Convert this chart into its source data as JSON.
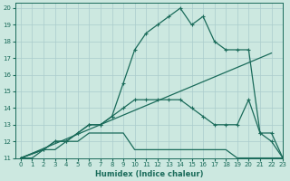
{
  "xlabel": "Humidex (Indice chaleur)",
  "bg_color": "#cce8e0",
  "grid_color": "#aacccc",
  "line_color": "#1a6b5a",
  "xlim": [
    -0.5,
    23
  ],
  "ylim": [
    11,
    20.3
  ],
  "xticks": [
    0,
    1,
    2,
    3,
    4,
    5,
    6,
    7,
    8,
    9,
    10,
    11,
    12,
    13,
    14,
    15,
    16,
    17,
    18,
    19,
    20,
    21,
    22,
    23
  ],
  "yticks": [
    11,
    12,
    13,
    14,
    15,
    16,
    17,
    18,
    19,
    20
  ],
  "line1_x": [
    0,
    1,
    2,
    3,
    4,
    5,
    6,
    7,
    8,
    9,
    10,
    11,
    12,
    13,
    14,
    15,
    16,
    17,
    18,
    19,
    20,
    21,
    22,
    23
  ],
  "line1_y": [
    11,
    11,
    11.5,
    11.5,
    12,
    12,
    12.5,
    12.5,
    12.5,
    12.5,
    11.5,
    11.5,
    11.5,
    11.5,
    11.5,
    11.5,
    11.5,
    11.5,
    11.5,
    11,
    11,
    11,
    11,
    11
  ],
  "line2_x": [
    0,
    22
  ],
  "line2_y": [
    11,
    17.3
  ],
  "line3_x": [
    0,
    2,
    3,
    4,
    5,
    6,
    7,
    8,
    9,
    10,
    11,
    12,
    13,
    14,
    15,
    16,
    17,
    18,
    19,
    20,
    21,
    22,
    23
  ],
  "line3_y": [
    11,
    11.5,
    12,
    12,
    12.5,
    13,
    13,
    13.5,
    14,
    14.5,
    14.5,
    14.5,
    14.5,
    14.5,
    14,
    13.5,
    13,
    13,
    13,
    14.5,
    12.5,
    12,
    11
  ],
  "line4_x": [
    0,
    2,
    3,
    4,
    5,
    6,
    7,
    8,
    9,
    10,
    11,
    12,
    13,
    14,
    15,
    16,
    17,
    18,
    19,
    20,
    21,
    22,
    23
  ],
  "line4_y": [
    11,
    11.5,
    12,
    12,
    12.5,
    13,
    13,
    13.5,
    15.5,
    17.5,
    18.5,
    19,
    19.5,
    20,
    19,
    19.5,
    18,
    17.5,
    17.5,
    17.5,
    12.5,
    12.5,
    11
  ]
}
